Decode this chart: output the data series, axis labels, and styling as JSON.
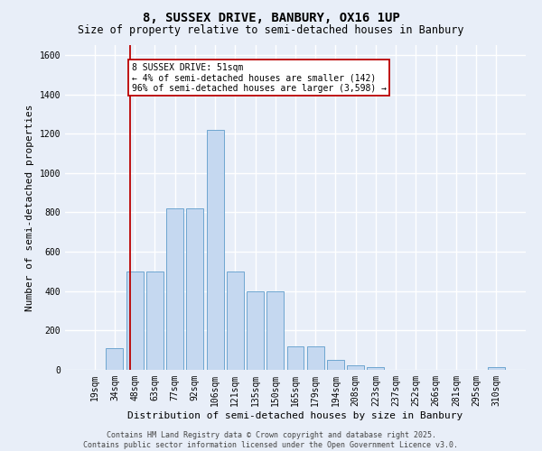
{
  "title": "8, SUSSEX DRIVE, BANBURY, OX16 1UP",
  "subtitle": "Size of property relative to semi-detached houses in Banbury",
  "xlabel": "Distribution of semi-detached houses by size in Banbury",
  "ylabel": "Number of semi-detached properties",
  "bin_labels": [
    "19sqm",
    "34sqm",
    "48sqm",
    "63sqm",
    "77sqm",
    "92sqm",
    "106sqm",
    "121sqm",
    "135sqm",
    "150sqm",
    "165sqm",
    "179sqm",
    "194sqm",
    "208sqm",
    "223sqm",
    "237sqm",
    "252sqm",
    "266sqm",
    "281sqm",
    "295sqm",
    "310sqm"
  ],
  "bar_heights": [
    0,
    110,
    500,
    500,
    820,
    820,
    1220,
    500,
    400,
    400,
    120,
    120,
    50,
    25,
    15,
    0,
    0,
    0,
    0,
    0,
    15
  ],
  "bar_color": "#c5d8f0",
  "bar_edge_color": "#6ea6d0",
  "ylim": [
    0,
    1650
  ],
  "yticks": [
    0,
    200,
    400,
    600,
    800,
    1000,
    1200,
    1400,
    1600
  ],
  "red_line_x": 1.75,
  "red_line_color": "#bb0000",
  "annotation_text": "8 SUSSEX DRIVE: 51sqm\n← 4% of semi-detached houses are smaller (142)\n96% of semi-detached houses are larger (3,598) →",
  "annotation_box_color": "#ffffff",
  "annotation_box_edge_color": "#bb0000",
  "footer_line1": "Contains HM Land Registry data © Crown copyright and database right 2025.",
  "footer_line2": "Contains public sector information licensed under the Open Government Licence v3.0.",
  "background_color": "#e8eef8",
  "grid_color": "#ffffff",
  "title_fontsize": 10,
  "subtitle_fontsize": 8.5,
  "tick_fontsize": 7,
  "ylabel_fontsize": 8,
  "xlabel_fontsize": 8,
  "footer_fontsize": 6,
  "annotation_fontsize": 7
}
